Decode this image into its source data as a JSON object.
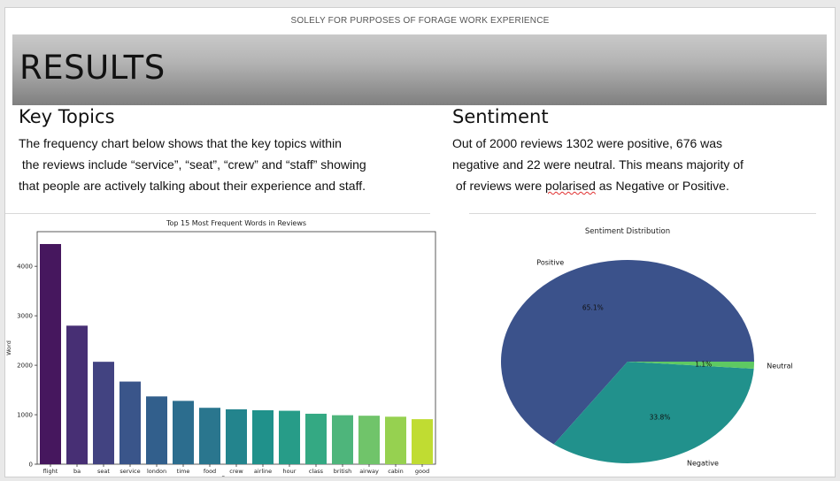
{
  "header_note": "SOLELY FOR PURPOSES OF FORAGE WORK EXPERIENCE",
  "title": "RESULTS",
  "left": {
    "heading": "Key Topics",
    "lines": [
      "The frequency chart below shows that the key topics within",
      " the reviews include “service”, “seat”, “crew” and “staff” showing",
      "that people are actively talking about their experience and staff."
    ]
  },
  "right": {
    "heading": "Sentiment",
    "lines": [
      "Out of 2000 reviews 1302 were positive, 676 was",
      "negative and 22 were neutral. This means majority of"
    ],
    "line3_pre": " of reviews were ",
    "line3_word": "polarised",
    "line3_post": " as Negative or Positive."
  },
  "chart_data": [
    {
      "type": "bar",
      "title": "Top 15 Most Frequent Words in Reviews",
      "xlabel": "Frequency",
      "ylabel": "Word",
      "categories": [
        "flight",
        "ba",
        "seat",
        "service",
        "london",
        "time",
        "food",
        "crew",
        "airline",
        "hour",
        "class",
        "british",
        "airway",
        "cabin",
        "good"
      ],
      "values": [
        4450,
        2800,
        2070,
        1670,
        1370,
        1280,
        1140,
        1110,
        1090,
        1080,
        1020,
        990,
        980,
        960,
        910
      ],
      "colors": [
        "#46175e",
        "#472f74",
        "#424381",
        "#3a558a",
        "#325f8c",
        "#2c6d8e",
        "#2a768e",
        "#23848d",
        "#20918b",
        "#279c88",
        "#34a983",
        "#4eb57b",
        "#70c46a",
        "#96d150",
        "#c0dc32"
      ],
      "yticks": [
        0,
        1000,
        2000,
        3000,
        4000
      ],
      "ylim": [
        0,
        4700
      ]
    },
    {
      "type": "pie",
      "title": "Sentiment Distribution",
      "labels": [
        "Positive",
        "Negative",
        "Neutral"
      ],
      "values": [
        65.1,
        33.8,
        1.1
      ],
      "pct_labels": [
        "65.1%",
        "33.8%",
        "1.1%"
      ],
      "colors": [
        "#3b528b",
        "#21918c",
        "#5ec962"
      ]
    }
  ]
}
